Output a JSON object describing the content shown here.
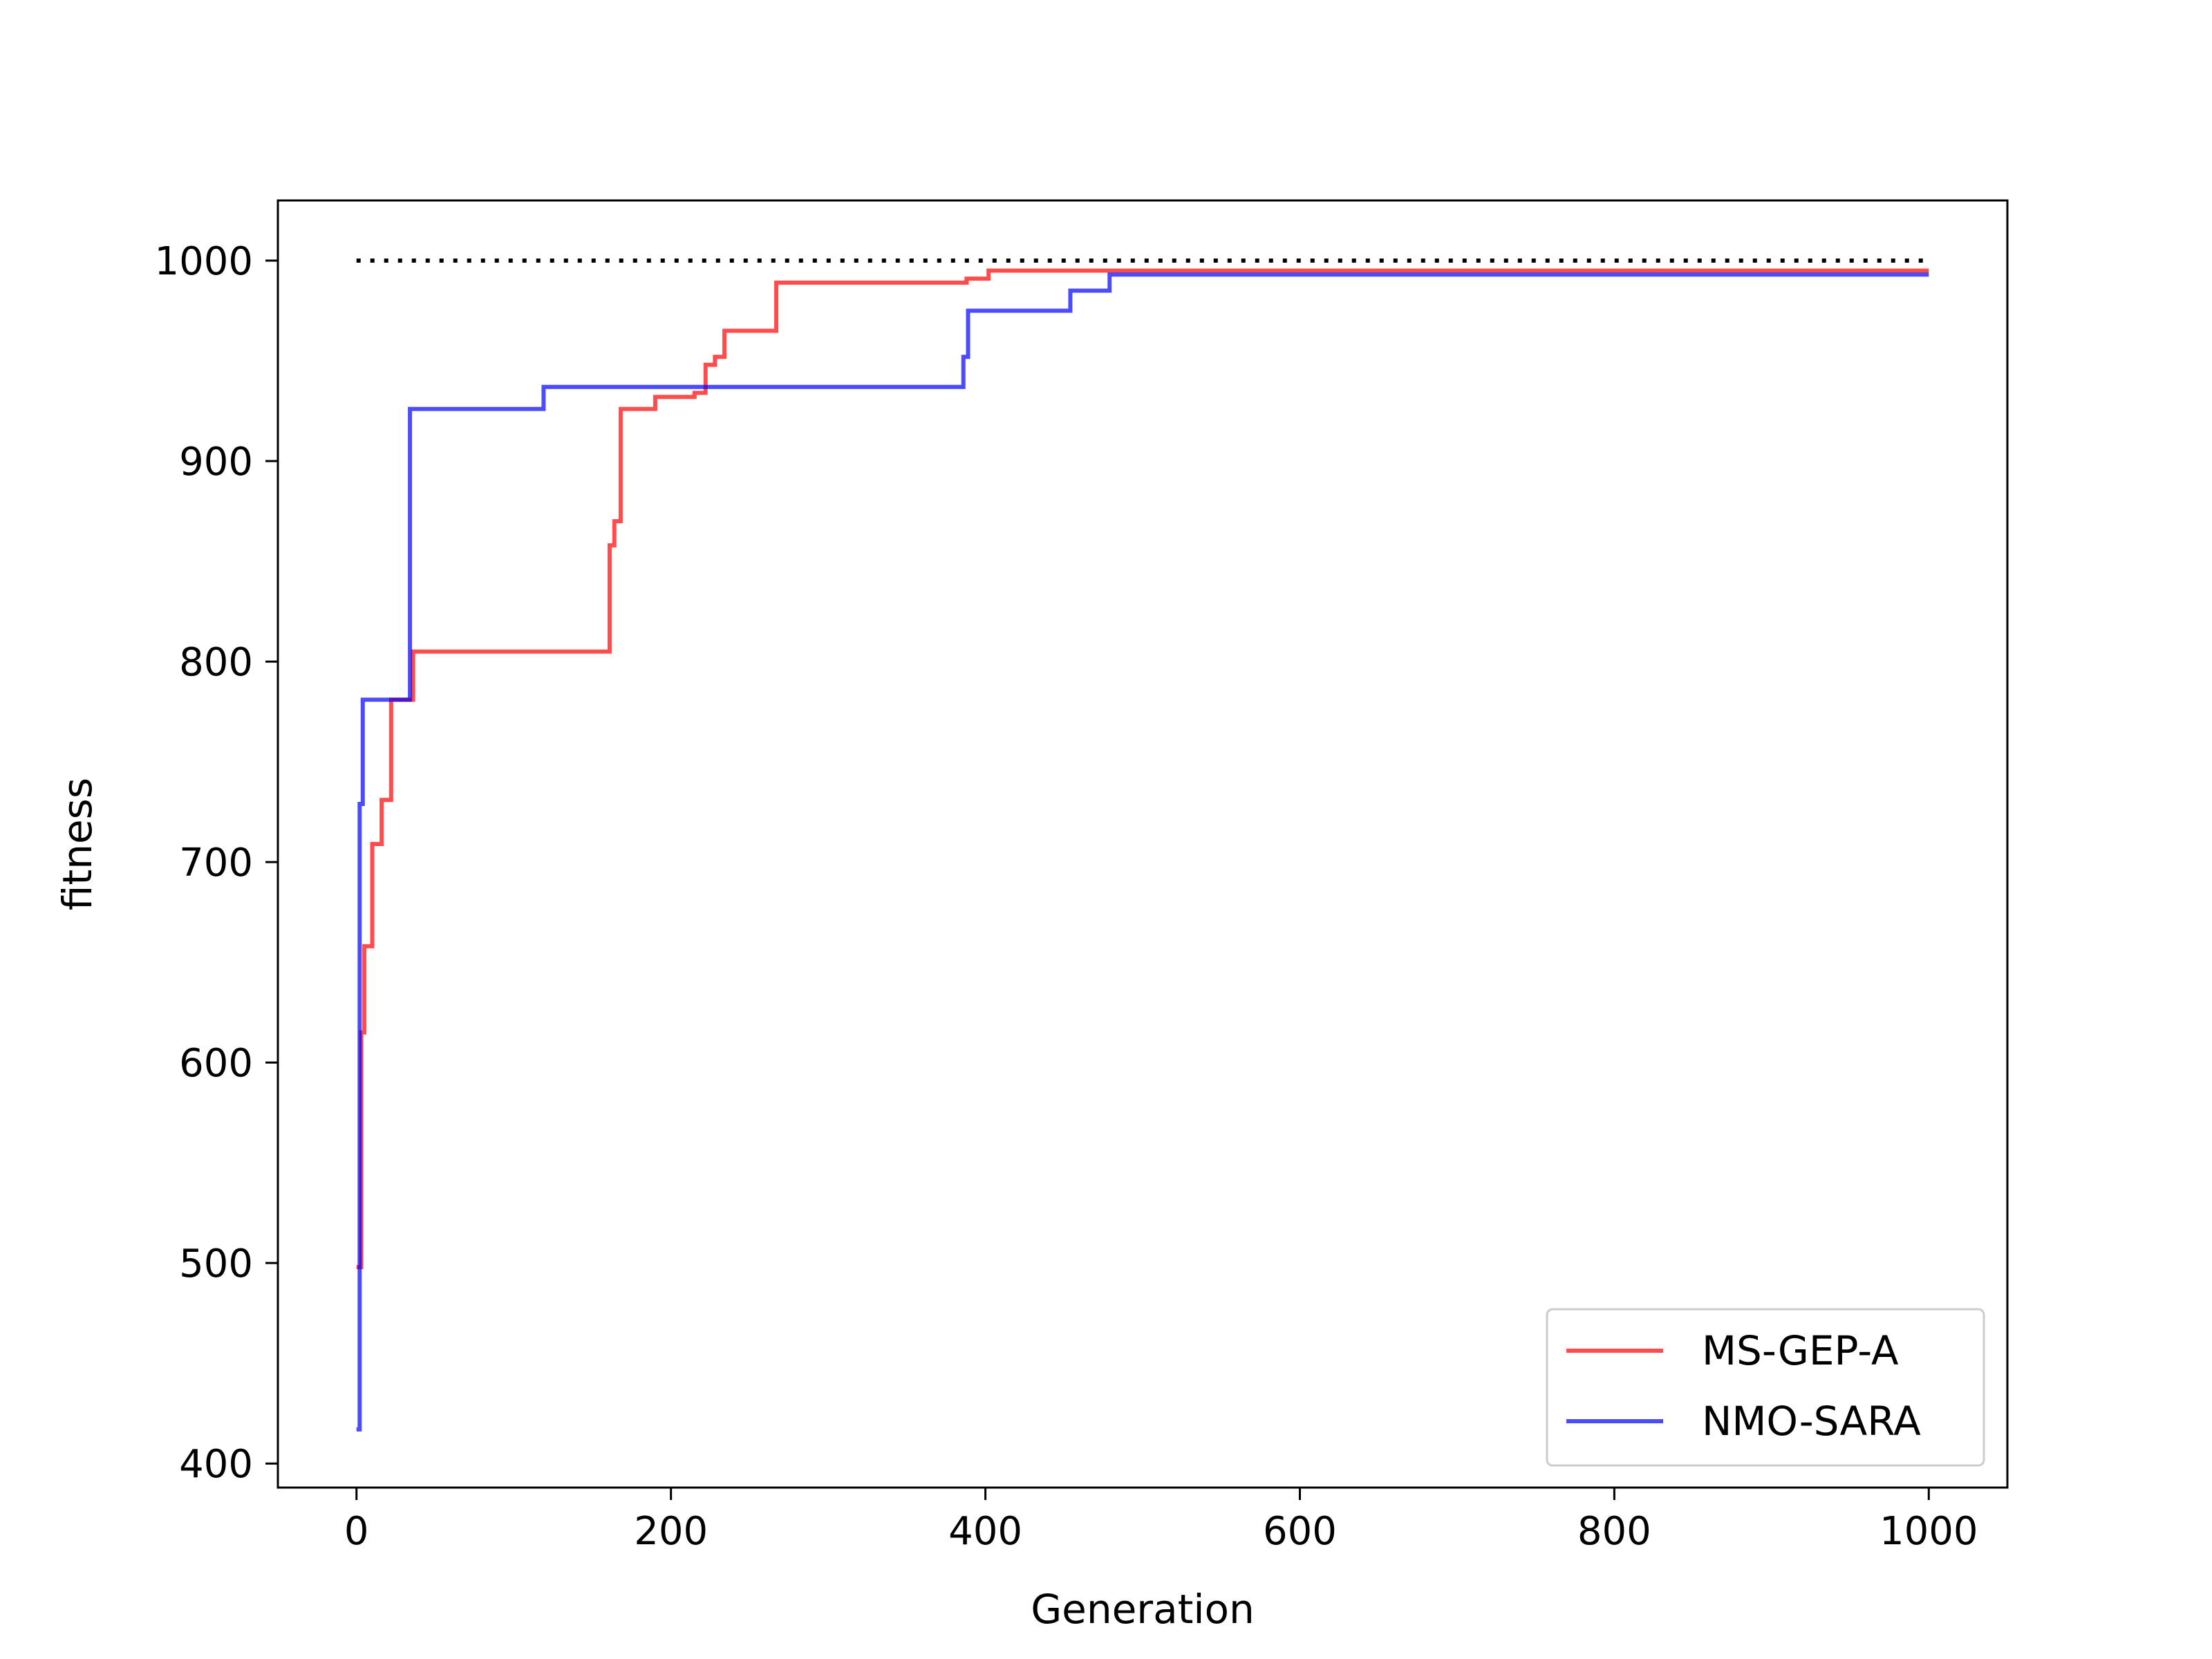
{
  "chart_data": {
    "type": "line",
    "title": "",
    "xlabel": "Generation",
    "ylabel": "fitness",
    "xlim": [
      -50,
      1050
    ],
    "ylim": [
      388,
      1030
    ],
    "xticks": [
      0,
      200,
      400,
      600,
      800,
      1000
    ],
    "yticks": [
      400,
      500,
      600,
      700,
      800,
      900,
      1000
    ],
    "grid": false,
    "legend_position": "lower-right",
    "reference_line": {
      "y": 1000,
      "x_range": [
        0,
        1000
      ],
      "style": "dotted",
      "color": "#000000"
    },
    "series": [
      {
        "name": "MS-GEP-A",
        "color": "#ff0000",
        "step": true,
        "points": [
          [
            0,
            498
          ],
          [
            3,
            615
          ],
          [
            5,
            658
          ],
          [
            10,
            709
          ],
          [
            16,
            731
          ],
          [
            22,
            781
          ],
          [
            36,
            805
          ],
          [
            161,
            858
          ],
          [
            164,
            870
          ],
          [
            168,
            926
          ],
          [
            190,
            932
          ],
          [
            215,
            934
          ],
          [
            222,
            948
          ],
          [
            228,
            952
          ],
          [
            234,
            965
          ],
          [
            267,
            989
          ],
          [
            388,
            991
          ],
          [
            402,
            995
          ],
          [
            480,
            995
          ],
          [
            1000,
            995
          ]
        ]
      },
      {
        "name": "NMO-SARA",
        "color": "#0000ff",
        "step": true,
        "points": [
          [
            0,
            417
          ],
          [
            2,
            729
          ],
          [
            4,
            781
          ],
          [
            34,
            926
          ],
          [
            119,
            937
          ],
          [
            386,
            952
          ],
          [
            389,
            975
          ],
          [
            454,
            985
          ],
          [
            479,
            993
          ],
          [
            1000,
            993
          ]
        ]
      }
    ]
  }
}
